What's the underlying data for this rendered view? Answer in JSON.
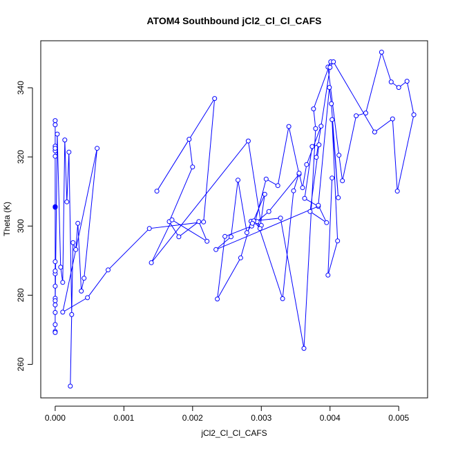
{
  "chart_data": {
    "type": "line",
    "title": "ATOM4 Southbound jCl2_Cl_Cl_CAFS",
    "xlabel": "jCl2_Cl_Cl_CAFS",
    "ylabel": "Theta (K)",
    "xlim": [
      -0.00021,
      0.00542
    ],
    "ylim": [
      250.3,
      353.6
    ],
    "x_ticks": [
      0,
      0.001,
      0.002,
      0.003,
      0.004,
      0.005
    ],
    "x_tick_labels": [
      "0.000",
      "0.001",
      "0.002",
      "0.003",
      "0.004",
      "0.005"
    ],
    "y_ticks": [
      260,
      280,
      300,
      320,
      340
    ],
    "y_tick_labels": [
      "260",
      "280",
      "300",
      "320",
      "340"
    ],
    "color": "#0000ff",
    "grid": false,
    "series": [
      {
        "x": [
          0.0,
          0.0,
          0.0,
          0.0,
          0.0,
          0.0,
          0.0,
          0.0,
          0.0,
          0.0,
          0.0,
          0.0,
          0.0,
          0.0,
          0.0,
          0.0,
          0.0,
          0.0,
          0.0,
          3e-05,
          8e-05,
          0.00011,
          0.00014,
          0.00017,
          0.0002,
          0.00024,
          0.00022,
          0.00026,
          0.0003,
          0.00033,
          0.00038,
          0.00042,
          0.00061,
          0.00011,
          0.00047,
          0.00077,
          0.00137,
          0.00216,
          0.00232,
          0.00148,
          0.00195,
          0.002,
          0.00166,
          0.0018,
          0.00209,
          0.00221,
          0.0017,
          0.0014,
          0.00281,
          0.003,
          0.00291,
          0.00307,
          0.00324,
          0.0034,
          0.00355,
          0.00311,
          0.00286,
          0.00247,
          0.00236,
          0.0027,
          0.00285,
          0.00328,
          0.00362,
          0.00379,
          0.00376,
          0.00401,
          0.00397,
          0.00413,
          0.00418,
          0.00438,
          0.00452,
          0.00475,
          0.00489,
          0.005,
          0.00512,
          0.00522,
          0.00498,
          0.00491,
          0.00465,
          0.00405,
          0.004,
          0.0038,
          0.00387,
          0.00366,
          0.0036,
          0.00355,
          0.00347,
          0.00331,
          0.00294,
          0.00289,
          0.00298,
          0.00305,
          0.00287,
          0.00279,
          0.00266,
          0.00256,
          0.00234,
          0.00383,
          0.00363,
          0.00374,
          0.00384,
          0.00371,
          0.00395,
          0.00383,
          0.00399,
          0.00402,
          0.00412,
          0.00403,
          0.00411,
          0.00397,
          0.00403
        ],
        "y": [
          330.5,
          329.3,
          323.1,
          321.8,
          322.5,
          320.2,
          305.6,
          305.4,
          289.7,
          286.2,
          287.0,
          282.6,
          279.1,
          278.4,
          269.5,
          269.2,
          271.5,
          275.0,
          277.2,
          326.6,
          288.1,
          283.7,
          324.9,
          307.0,
          321.4,
          274.4,
          253.7,
          295.2,
          293.2,
          300.8,
          281.2,
          284.9,
          322.5,
          275.1,
          279.3,
          287.3,
          299.3,
          301.2,
          336.9,
          310.1,
          325.1,
          317.1,
          301.3,
          296.9,
          301.3,
          295.6,
          301.8,
          289.4,
          324.6,
          300.2,
          301.2,
          313.6,
          311.7,
          328.8,
          315.0,
          304.2,
          300.0,
          297.0,
          278.9,
          290.8,
          301.4,
          302.3,
          264.6,
          328.2,
          333.9,
          347.5,
          346.0,
          320.5,
          313.1,
          331.9,
          332.7,
          350.3,
          341.7,
          340.1,
          341.9,
          332.2,
          310.1,
          331.0,
          327.2,
          347.5,
          345.9,
          319.9,
          328.9,
          317.8,
          311.1,
          315.3,
          310.2,
          279.0,
          301.3,
          301.5,
          299.3,
          309.2,
          300.8,
          298.1,
          313.3,
          296.9,
          293.2,
          305.7,
          308.0,
          323.0,
          323.5,
          304.2,
          301.0,
          306.0,
          340.1,
          335.4,
          308.2,
          330.8,
          295.7,
          285.8,
          313.9
        ],
        "hollow_markers": true,
        "filled_marker": {
          "x": 0.0,
          "y": 305.6
        }
      }
    ]
  }
}
